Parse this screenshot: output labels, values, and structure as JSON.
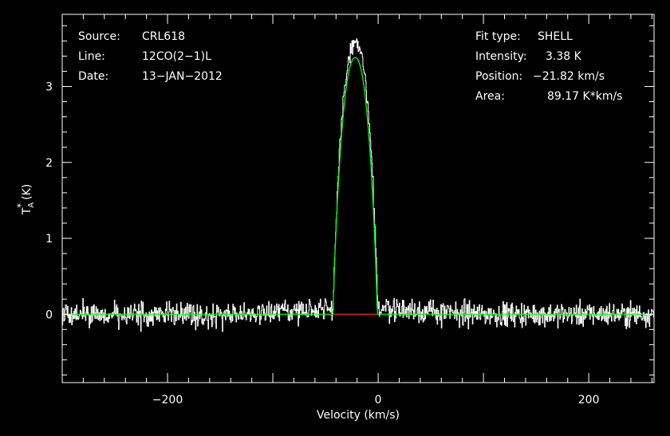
{
  "chart_data": {
    "type": "line",
    "xlabel": "Velocity (km/s)",
    "ylabel": "T",
    "ylabel_sup": "*",
    "ylabel_sub": "A",
    "ylabel_unit": "(K)",
    "xlim": [
      -300,
      262
    ],
    "ylim": [
      -0.9,
      3.95
    ],
    "xticks": [
      -200,
      0,
      200
    ],
    "xtick_labels": [
      "−200",
      "0",
      "200"
    ],
    "yticks": [
      0,
      1,
      2,
      3
    ],
    "ytick_labels": [
      "0",
      "1",
      "2",
      "3"
    ],
    "x_minor_step": 20,
    "y_minor_step": 0.2,
    "grid": false,
    "colors": {
      "background": "#000000",
      "axes": "#ffffff",
      "spectrum": "#ffffff",
      "fit": "#00ff00",
      "baseline_fit": "#ff2020"
    },
    "annotations_left": [
      {
        "label": "Source:",
        "value": "CRL618"
      },
      {
        "label": "Line:",
        "value": "12CO(2−1)L"
      },
      {
        "label": "Date:",
        "value": "13−JAN−2012"
      }
    ],
    "annotations_right": [
      {
        "label": "Fit type:",
        "value": "SHELL"
      },
      {
        "label": "Intensity:",
        "value": "3.38 K"
      },
      {
        "label": "Position:",
        "value": "−21.82 km/s"
      },
      {
        "label": "Area:",
        "value": "89.17 K*km/s"
      }
    ],
    "fit": {
      "type": "SHELL",
      "center_kms": -21.82,
      "peak_K": 3.38,
      "half_width_kms": 21,
      "edge_taper_kms": 6
    },
    "series": [
      {
        "kind": "observed-spectrum",
        "noise_rms_K": 0.11,
        "x_step_kms": 0.5,
        "signal_peak_K": 3.45,
        "signal_center_kms": -22,
        "signal_half_width_kms": 22
      },
      {
        "kind": "shell-fit",
        "x": [
          -300,
          -43,
          -40,
          -35,
          -30,
          -25,
          -21.82,
          -18,
          -13,
          -8,
          -3,
          0,
          262
        ],
        "y": [
          0,
          0,
          0.9,
          2.3,
          3.1,
          3.36,
          3.38,
          3.34,
          3.0,
          2.1,
          0.6,
          0,
          0
        ]
      },
      {
        "kind": "baseline",
        "x": [
          -43,
          -1
        ],
        "y": [
          0,
          0
        ]
      }
    ]
  }
}
